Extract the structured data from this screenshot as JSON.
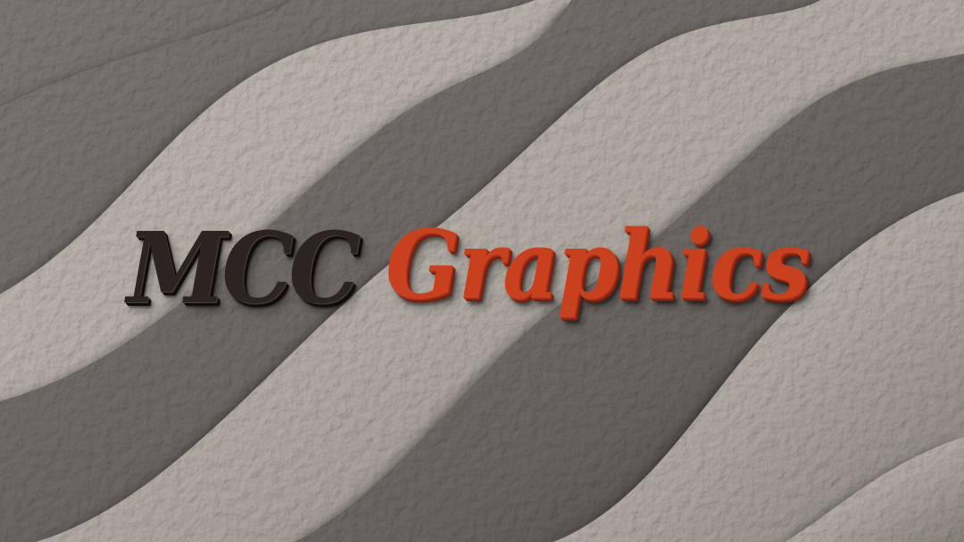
{
  "logo": {
    "part1": "MCC",
    "part2": "Graphics",
    "part1_color": "#2b2421",
    "part2_color": "#c9401f"
  },
  "background": {
    "description_colors": {
      "light_band": "#cdc8c2",
      "dark_band": "#6f6b68",
      "shadow": "#2f2b29"
    }
  }
}
